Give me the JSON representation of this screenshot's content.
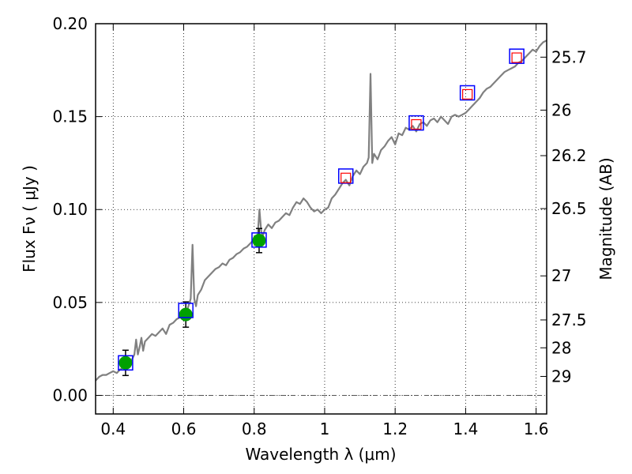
{
  "chart_data": {
    "type": "line",
    "xlabel": "Wavelength  λ (μm)",
    "ylabel": "Flux  Fν  ( μJy )",
    "y2label": "Magnitude (AB)",
    "xlim": [
      0.35,
      1.63
    ],
    "ylim": [
      -0.01,
      0.2
    ],
    "grid": true,
    "x_ticks": [
      0.4,
      0.6,
      0.8,
      1.0,
      1.2,
      1.4,
      1.6
    ],
    "x_tick_labels": [
      "0.4",
      "0.6",
      "0.8",
      "1",
      "1.2",
      "1.4",
      "1.6"
    ],
    "y_ticks": [
      0.0,
      0.05,
      0.1,
      0.15,
      0.2
    ],
    "y_tick_labels": [
      "0.00",
      "0.05",
      "0.10",
      "0.15",
      "0.20"
    ],
    "y2_ticks": [
      {
        "flux": 0.182,
        "label": "25.7"
      },
      {
        "flux": 0.1535,
        "label": "26"
      },
      {
        "flux": 0.129,
        "label": "26.2"
      },
      {
        "flux": 0.1005,
        "label": "26.5"
      },
      {
        "flux": 0.0643,
        "label": "27"
      },
      {
        "flux": 0.0406,
        "label": "27.5"
      },
      {
        "flux": 0.0256,
        "label": "28"
      },
      {
        "flux": 0.0102,
        "label": "29"
      }
    ],
    "series": [
      {
        "kind": "spectrum",
        "color": "#808080",
        "x": [
          0.35,
          0.36,
          0.37,
          0.38,
          0.39,
          0.4,
          0.41,
          0.42,
          0.43,
          0.44,
          0.45,
          0.46,
          0.465,
          0.47,
          0.475,
          0.48,
          0.485,
          0.49,
          0.5,
          0.51,
          0.52,
          0.53,
          0.54,
          0.55,
          0.56,
          0.57,
          0.58,
          0.59,
          0.6,
          0.61,
          0.615,
          0.62,
          0.625,
          0.63,
          0.635,
          0.64,
          0.65,
          0.66,
          0.67,
          0.68,
          0.69,
          0.7,
          0.71,
          0.72,
          0.73,
          0.74,
          0.75,
          0.76,
          0.77,
          0.78,
          0.79,
          0.8,
          0.81,
          0.815,
          0.82,
          0.825,
          0.83,
          0.84,
          0.85,
          0.86,
          0.87,
          0.88,
          0.89,
          0.9,
          0.91,
          0.92,
          0.93,
          0.94,
          0.95,
          0.96,
          0.97,
          0.98,
          0.99,
          1.0,
          1.01,
          1.02,
          1.03,
          1.04,
          1.05,
          1.06,
          1.07,
          1.08,
          1.09,
          1.1,
          1.11,
          1.12,
          1.125,
          1.13,
          1.135,
          1.14,
          1.15,
          1.16,
          1.17,
          1.18,
          1.19,
          1.2,
          1.21,
          1.22,
          1.23,
          1.24,
          1.25,
          1.26,
          1.27,
          1.28,
          1.29,
          1.3,
          1.31,
          1.32,
          1.33,
          1.34,
          1.35,
          1.36,
          1.37,
          1.38,
          1.39,
          1.4,
          1.41,
          1.42,
          1.43,
          1.44,
          1.45,
          1.46,
          1.47,
          1.48,
          1.49,
          1.5,
          1.51,
          1.52,
          1.53,
          1.54,
          1.55,
          1.56,
          1.57,
          1.58,
          1.59,
          1.6,
          1.61,
          1.62,
          1.63
        ],
        "y": [
          0.008,
          0.01,
          0.011,
          0.011,
          0.012,
          0.013,
          0.012,
          0.014,
          0.015,
          0.016,
          0.018,
          0.022,
          0.03,
          0.022,
          0.026,
          0.031,
          0.024,
          0.029,
          0.031,
          0.033,
          0.032,
          0.034,
          0.036,
          0.033,
          0.038,
          0.039,
          0.041,
          0.042,
          0.044,
          0.046,
          0.049,
          0.052,
          0.081,
          0.052,
          0.048,
          0.054,
          0.057,
          0.062,
          0.064,
          0.066,
          0.068,
          0.069,
          0.071,
          0.07,
          0.073,
          0.074,
          0.076,
          0.077,
          0.079,
          0.08,
          0.082,
          0.084,
          0.086,
          0.1,
          0.088,
          0.086,
          0.089,
          0.092,
          0.09,
          0.093,
          0.094,
          0.096,
          0.098,
          0.097,
          0.101,
          0.104,
          0.103,
          0.106,
          0.104,
          0.101,
          0.099,
          0.1,
          0.098,
          0.1,
          0.101,
          0.106,
          0.108,
          0.111,
          0.114,
          0.116,
          0.113,
          0.118,
          0.121,
          0.119,
          0.123,
          0.125,
          0.128,
          0.173,
          0.125,
          0.13,
          0.127,
          0.132,
          0.134,
          0.137,
          0.139,
          0.135,
          0.141,
          0.14,
          0.144,
          0.143,
          0.145,
          0.142,
          0.146,
          0.147,
          0.145,
          0.148,
          0.149,
          0.147,
          0.15,
          0.148,
          0.146,
          0.15,
          0.151,
          0.15,
          0.151,
          0.152,
          0.154,
          0.156,
          0.158,
          0.16,
          0.163,
          0.165,
          0.166,
          0.168,
          0.17,
          0.172,
          0.174,
          0.175,
          0.176,
          0.177,
          0.179,
          0.18,
          0.182,
          0.184,
          0.186,
          0.185,
          0.188,
          0.19,
          0.191
        ]
      },
      {
        "kind": "photometry",
        "marker": "filled circle",
        "color": "#00a000",
        "x": [
          0.435,
          0.606,
          0.814
        ],
        "y": [
          0.0175,
          0.0435,
          0.0833
        ],
        "yerr": [
          0.0068,
          0.0068,
          0.0065
        ]
      },
      {
        "kind": "model-band",
        "marker": "open square",
        "color": "#0000ff",
        "x": [
          0.435,
          0.606,
          0.814,
          1.06,
          1.26,
          1.405,
          1.545
        ],
        "y": [
          0.0175,
          0.0457,
          0.0836,
          0.118,
          0.1466,
          0.1628,
          0.1825
        ]
      },
      {
        "kind": "upper-bands",
        "marker": "open square",
        "color": "#ff0000",
        "x": [
          1.06,
          1.26,
          1.405,
          1.545
        ],
        "y": [
          0.117,
          0.1458,
          0.162,
          0.1817
        ]
      }
    ]
  }
}
